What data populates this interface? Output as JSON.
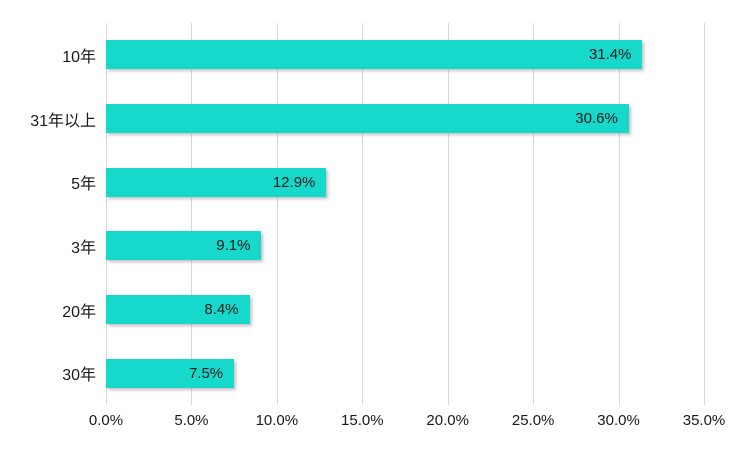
{
  "chart_data": {
    "type": "bar",
    "orientation": "horizontal",
    "title": "",
    "xlabel": "",
    "ylabel": "",
    "categories": [
      "10年",
      "31年以上",
      "5年",
      "3年",
      "20年",
      "30年"
    ],
    "values": [
      31.4,
      30.6,
      12.9,
      9.1,
      8.4,
      7.5
    ],
    "value_labels": [
      "31.4%",
      "30.6%",
      "12.9%",
      "9.1%",
      "8.4%",
      "7.5%"
    ],
    "xlim": [
      0,
      35
    ],
    "xtick_values": [
      0,
      5,
      10,
      15,
      20,
      25,
      30,
      35
    ],
    "xtick_labels": [
      "0.0%",
      "5.0%",
      "10.0%",
      "15.0%",
      "20.0%",
      "25.0%",
      "30.0%",
      "35.0%"
    ],
    "grid": true,
    "legend": "none",
    "colors": {
      "bar": "#16d8cb",
      "gridline": "#d9d9d9",
      "text": "#1a1a1a",
      "background": "#ffffff"
    }
  }
}
